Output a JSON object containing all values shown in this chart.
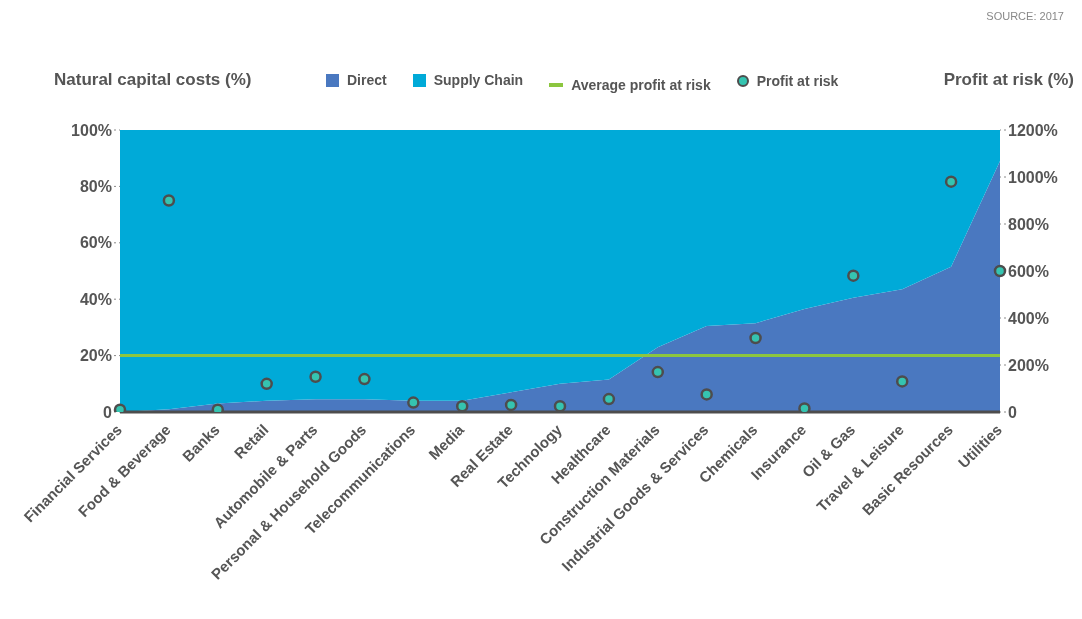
{
  "chart_data": {
    "type": "area",
    "stacked": true,
    "legend": "top",
    "ylabel": "Natural capital costs (%)",
    "y2label": "Profit at risk (%)",
    "annotations": [
      "SOURCE: 2017"
    ],
    "categories": [
      "Financial Services",
      "Food & Beverage",
      "Banks",
      "Retail",
      "Automobile & Parts",
      "Personal & Household Goods",
      "Telecommunications",
      "Media",
      "Real Estate",
      "Technology",
      "Healthcare",
      "Construction Materials",
      "Industrial Goods & Services",
      "Chemicals",
      "Insurance",
      "Oil & Gas",
      "Travel & Leisure",
      "Basic Resources",
      "Utilities"
    ],
    "ylim": [
      0,
      100
    ],
    "yticks": [
      {
        "value": 0,
        "label": "0"
      },
      {
        "value": 20,
        "label": "20%"
      },
      {
        "value": 40,
        "label": "40%"
      },
      {
        "value": 60,
        "label": "60%"
      },
      {
        "value": 80,
        "label": "80%"
      },
      {
        "value": 100,
        "label": "100%"
      }
    ],
    "y2lim": [
      0,
      1200
    ],
    "y2ticks": [
      {
        "value": 0,
        "label": "0"
      },
      {
        "value": 200,
        "label": "200%"
      },
      {
        "value": 400,
        "label": "400%"
      },
      {
        "value": 600,
        "label": "600%"
      },
      {
        "value": 800,
        "label": "800%"
      },
      {
        "value": 1000,
        "label": "1000%"
      },
      {
        "value": 1200,
        "label": "1200%"
      }
    ],
    "series": [
      {
        "name": "Direct",
        "color": "#4a78c0",
        "values": [
          0,
          1,
          3,
          4,
          4.5,
          4.5,
          4,
          4,
          7,
          10,
          11.5,
          23,
          30.5,
          31.5,
          36.5,
          40.5,
          43.5,
          51.5,
          89
        ]
      },
      {
        "name": "Supply Chain",
        "color": "#00aad8",
        "values": [
          100,
          99,
          97,
          96,
          95.5,
          95.5,
          96,
          96,
          93,
          90,
          88.5,
          77,
          69.5,
          68.5,
          63.5,
          59.5,
          56.5,
          48.5,
          11
        ]
      },
      {
        "name": "Profit at risk",
        "type": "scatter",
        "marker": "circle",
        "axis": "y2",
        "color": "#35c4b0",
        "values": [
          10,
          900,
          10,
          120,
          150,
          140,
          40,
          25,
          30,
          25,
          55,
          170,
          75,
          315,
          15,
          580,
          130,
          980,
          600
        ]
      }
    ],
    "ref_lines": [
      {
        "axis": "y",
        "value": 20,
        "label": "Average profit at risk",
        "color": "#8cc63f"
      }
    ]
  }
}
